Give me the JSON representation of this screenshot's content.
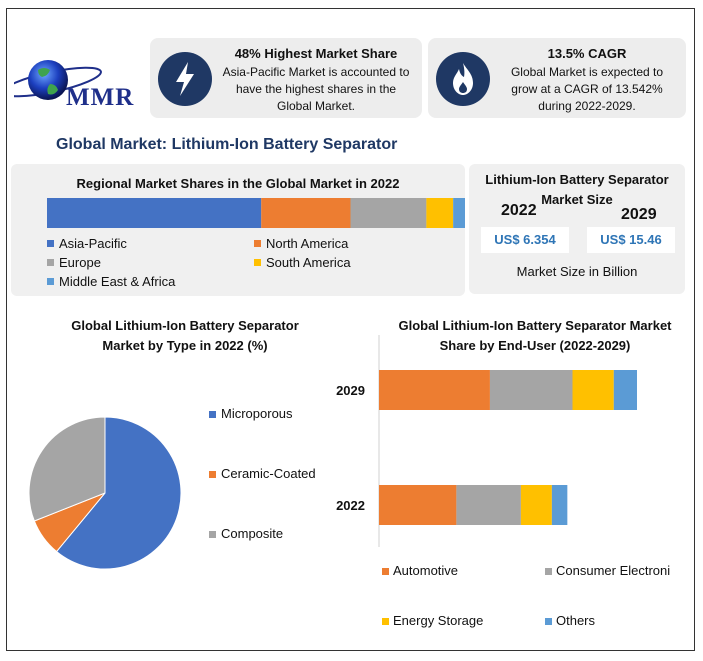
{
  "logo": {
    "text": "MMR"
  },
  "info_cards": [
    {
      "title": "48% Highest Market Share",
      "body": [
        "Asia-Pacific Market is accounted to",
        "have the highest shares in the",
        "Global Market."
      ],
      "icon": "lightning-icon"
    },
    {
      "title": "13.5% CAGR",
      "body": [
        "Global Market is expected to",
        "grow at a CAGR of 13.542%",
        "during 2022-2029."
      ],
      "icon": "flame-icon"
    }
  ],
  "main_title": "Global Market: Lithium-Ion Battery Separator",
  "colors": {
    "blue": "#4472c4",
    "orange": "#ed7d31",
    "gray": "#a5a5a5",
    "yellow": "#ffc000",
    "lightblue": "#5b9bd5",
    "navy": "#1f3864"
  },
  "market_size": {
    "title_line1": "Lithium-Ion Battery Separator",
    "title_line2": "Market Size",
    "year_a": "2022",
    "year_b": "2029",
    "value_a": "US$ 6.354",
    "value_b": "US$ 15.46",
    "unit": "Market Size in Billion"
  },
  "chart_data": [
    {
      "type": "bar",
      "orientation": "horizontal-stacked",
      "title": "Regional Market Shares in the Global Market in 2022",
      "categories": [
        "2022"
      ],
      "series": [
        {
          "name": "Asia-Pacific",
          "values": [
            48
          ]
        },
        {
          "name": "North America",
          "values": [
            20
          ]
        },
        {
          "name": "Europe",
          "values": [
            17
          ]
        },
        {
          "name": "South America",
          "values": [
            6
          ]
        },
        {
          "name": "Middle East & Africa",
          "values": [
            4
          ]
        }
      ],
      "xlim": [
        0,
        95
      ]
    },
    {
      "type": "pie",
      "title_line1": "Global Lithium-Ion Battery Separator",
      "title_line2": "Market by Type in 2022 (%)",
      "labels": [
        "Microporous",
        "Ceramic-Coated",
        "Composite"
      ],
      "values": [
        61,
        8,
        31
      ]
    },
    {
      "type": "bar",
      "orientation": "horizontal-stacked",
      "title_line1": "Global Lithium-Ion Battery Separator Market",
      "title_line2": "Share by End-User (2022-2029)",
      "categories": [
        "2029",
        "2022"
      ],
      "series": [
        {
          "name": "Automotive",
          "values": [
            43,
            30
          ]
        },
        {
          "name": "Consumer Electronics",
          "values": [
            32,
            25
          ]
        },
        {
          "name": "Energy Storage",
          "values": [
            16,
            12
          ]
        },
        {
          "name": "Others",
          "values": [
            9,
            6
          ]
        }
      ],
      "xlim": [
        0,
        120
      ]
    }
  ]
}
